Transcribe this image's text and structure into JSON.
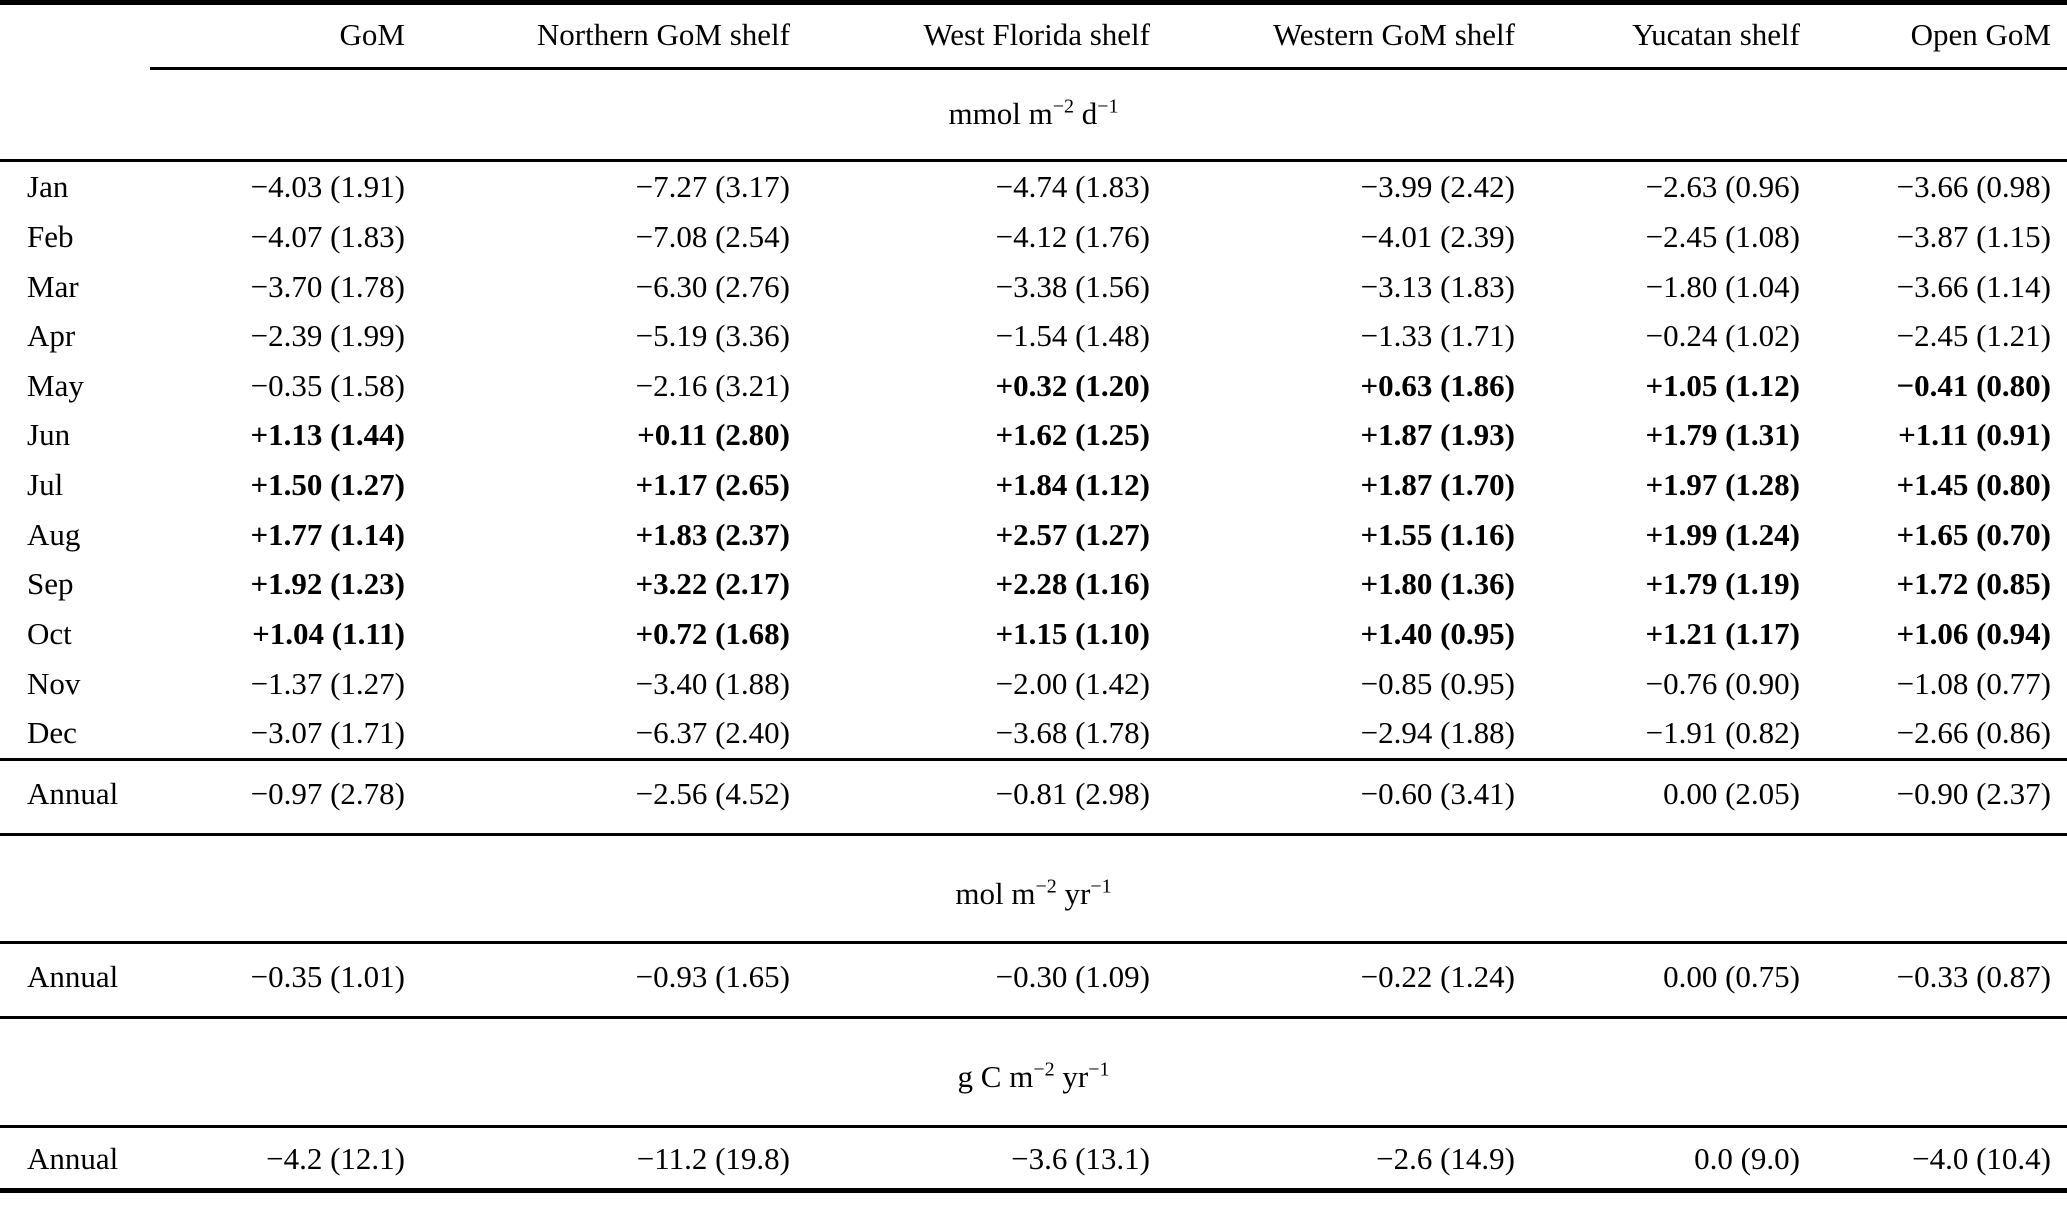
{
  "table": {
    "columns": [
      "",
      "GoM",
      "Northern GoM shelf",
      "West Florida shelf",
      "Western GoM shelf",
      "Yucatan shelf",
      "Open GoM"
    ],
    "sections": [
      {
        "unit": {
          "pre": "mmol m",
          "sup1": "−2",
          "mid": " d",
          "sup2": "−1"
        },
        "rows": [
          {
            "label": "Jan",
            "values": [
              "−4.03 (1.91)",
              "−7.27 (3.17)",
              "−4.74 (1.83)",
              "−3.99 (2.42)",
              "−2.63 (0.96)",
              "−3.66 (0.98)"
            ],
            "bold": [
              false,
              false,
              false,
              false,
              false,
              false
            ]
          },
          {
            "label": "Feb",
            "values": [
              "−4.07 (1.83)",
              "−7.08 (2.54)",
              "−4.12 (1.76)",
              "−4.01 (2.39)",
              "−2.45 (1.08)",
              "−3.87 (1.15)"
            ],
            "bold": [
              false,
              false,
              false,
              false,
              false,
              false
            ]
          },
          {
            "label": "Mar",
            "values": [
              "−3.70 (1.78)",
              "−6.30 (2.76)",
              "−3.38 (1.56)",
              "−3.13 (1.83)",
              "−1.80 (1.04)",
              "−3.66 (1.14)"
            ],
            "bold": [
              false,
              false,
              false,
              false,
              false,
              false
            ]
          },
          {
            "label": "Apr",
            "values": [
              "−2.39 (1.99)",
              "−5.19 (3.36)",
              "−1.54 (1.48)",
              "−1.33 (1.71)",
              "−0.24 (1.02)",
              "−2.45 (1.21)"
            ],
            "bold": [
              false,
              false,
              false,
              false,
              false,
              false
            ]
          },
          {
            "label": "May",
            "values": [
              "−0.35 (1.58)",
              "−2.16 (3.21)",
              "+0.32 (1.20)",
              "+0.63 (1.86)",
              "+1.05 (1.12)",
              "−0.41 (0.80)"
            ],
            "bold": [
              false,
              false,
              true,
              true,
              true,
              true
            ]
          },
          {
            "label": "Jun",
            "values": [
              "+1.13 (1.44)",
              "+0.11 (2.80)",
              "+1.62 (1.25)",
              "+1.87 (1.93)",
              "+1.79 (1.31)",
              "+1.11 (0.91)"
            ],
            "bold": [
              true,
              true,
              true,
              true,
              true,
              true
            ]
          },
          {
            "label": "Jul",
            "values": [
              "+1.50 (1.27)",
              "+1.17 (2.65)",
              "+1.84 (1.12)",
              "+1.87 (1.70)",
              "+1.97 (1.28)",
              "+1.45 (0.80)"
            ],
            "bold": [
              true,
              true,
              true,
              true,
              true,
              true
            ]
          },
          {
            "label": "Aug",
            "values": [
              "+1.77 (1.14)",
              "+1.83 (2.37)",
              "+2.57 (1.27)",
              "+1.55 (1.16)",
              "+1.99 (1.24)",
              "+1.65 (0.70)"
            ],
            "bold": [
              true,
              true,
              true,
              true,
              true,
              true
            ]
          },
          {
            "label": "Sep",
            "values": [
              "+1.92 (1.23)",
              "+3.22 (2.17)",
              "+2.28 (1.16)",
              "+1.80 (1.36)",
              "+1.79 (1.19)",
              "+1.72 (0.85)"
            ],
            "bold": [
              true,
              true,
              true,
              true,
              true,
              true
            ]
          },
          {
            "label": "Oct",
            "values": [
              "+1.04 (1.11)",
              "+0.72 (1.68)",
              "+1.15 (1.10)",
              "+1.40 (0.95)",
              "+1.21 (1.17)",
              "+1.06 (0.94)"
            ],
            "bold": [
              true,
              true,
              true,
              true,
              true,
              true
            ]
          },
          {
            "label": "Nov",
            "values": [
              "−1.37 (1.27)",
              "−3.40 (1.88)",
              "−2.00 (1.42)",
              "−0.85 (0.95)",
              "−0.76 (0.90)",
              "−1.08 (0.77)"
            ],
            "bold": [
              false,
              false,
              false,
              false,
              false,
              false
            ]
          },
          {
            "label": "Dec",
            "values": [
              "−3.07 (1.71)",
              "−6.37 (2.40)",
              "−3.68 (1.78)",
              "−2.94 (1.88)",
              "−1.91 (0.82)",
              "−2.66 (0.86)"
            ],
            "bold": [
              false,
              false,
              false,
              false,
              false,
              false
            ]
          }
        ],
        "annual": {
          "label": "Annual",
          "values": [
            "−0.97 (2.78)",
            "−2.56 (4.52)",
            "−0.81 (2.98)",
            "−0.60 (3.41)",
            "0.00 (2.05)",
            "−0.90 (2.37)"
          ]
        }
      },
      {
        "unit": {
          "pre": "mol m",
          "sup1": "−2",
          "mid": " yr",
          "sup2": "−1"
        },
        "annual": {
          "label": "Annual",
          "values": [
            "−0.35 (1.01)",
            "−0.93 (1.65)",
            "−0.30 (1.09)",
            "−0.22 (1.24)",
            "0.00 (0.75)",
            "−0.33 (0.87)"
          ]
        }
      },
      {
        "unit": {
          "pre": "g C m",
          "sup1": "−2",
          "mid": " yr",
          "sup2": "−1"
        },
        "annual": {
          "label": "Annual",
          "values": [
            "−4.2 (12.1)",
            "−11.2 (19.8)",
            "−3.6 (13.1)",
            "−2.6 (14.9)",
            "0.0 (9.0)",
            "−4.0 (10.4)"
          ]
        }
      }
    ]
  }
}
